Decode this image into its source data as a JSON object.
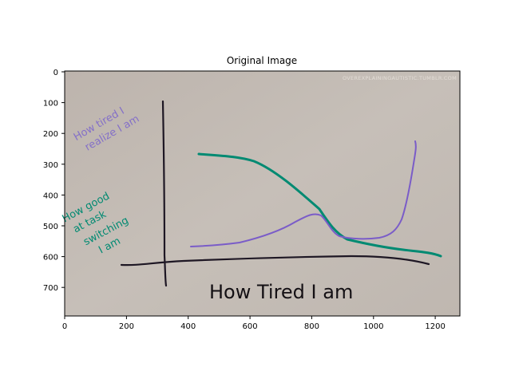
{
  "plot": {
    "title": "Original Image",
    "x_ticks": [
      "0",
      "200",
      "400",
      "600",
      "800",
      "1000",
      "1200"
    ],
    "y_ticks": [
      "0",
      "100",
      "200",
      "300",
      "400",
      "500",
      "600",
      "700"
    ]
  },
  "photo": {
    "watermark": "OVEREXPLAININGAUTISTIC.TUMBLR.COM",
    "purple_label": [
      "How tired I",
      "realize I am"
    ],
    "green_label": [
      "How good",
      "at task",
      "switching",
      "I am"
    ],
    "x_axis_label": "How Tired I am",
    "colors": {
      "paper": "#c4bcb5",
      "purple": "#7a5cc8",
      "green": "#008a72",
      "ink": "#1e1724"
    }
  }
}
